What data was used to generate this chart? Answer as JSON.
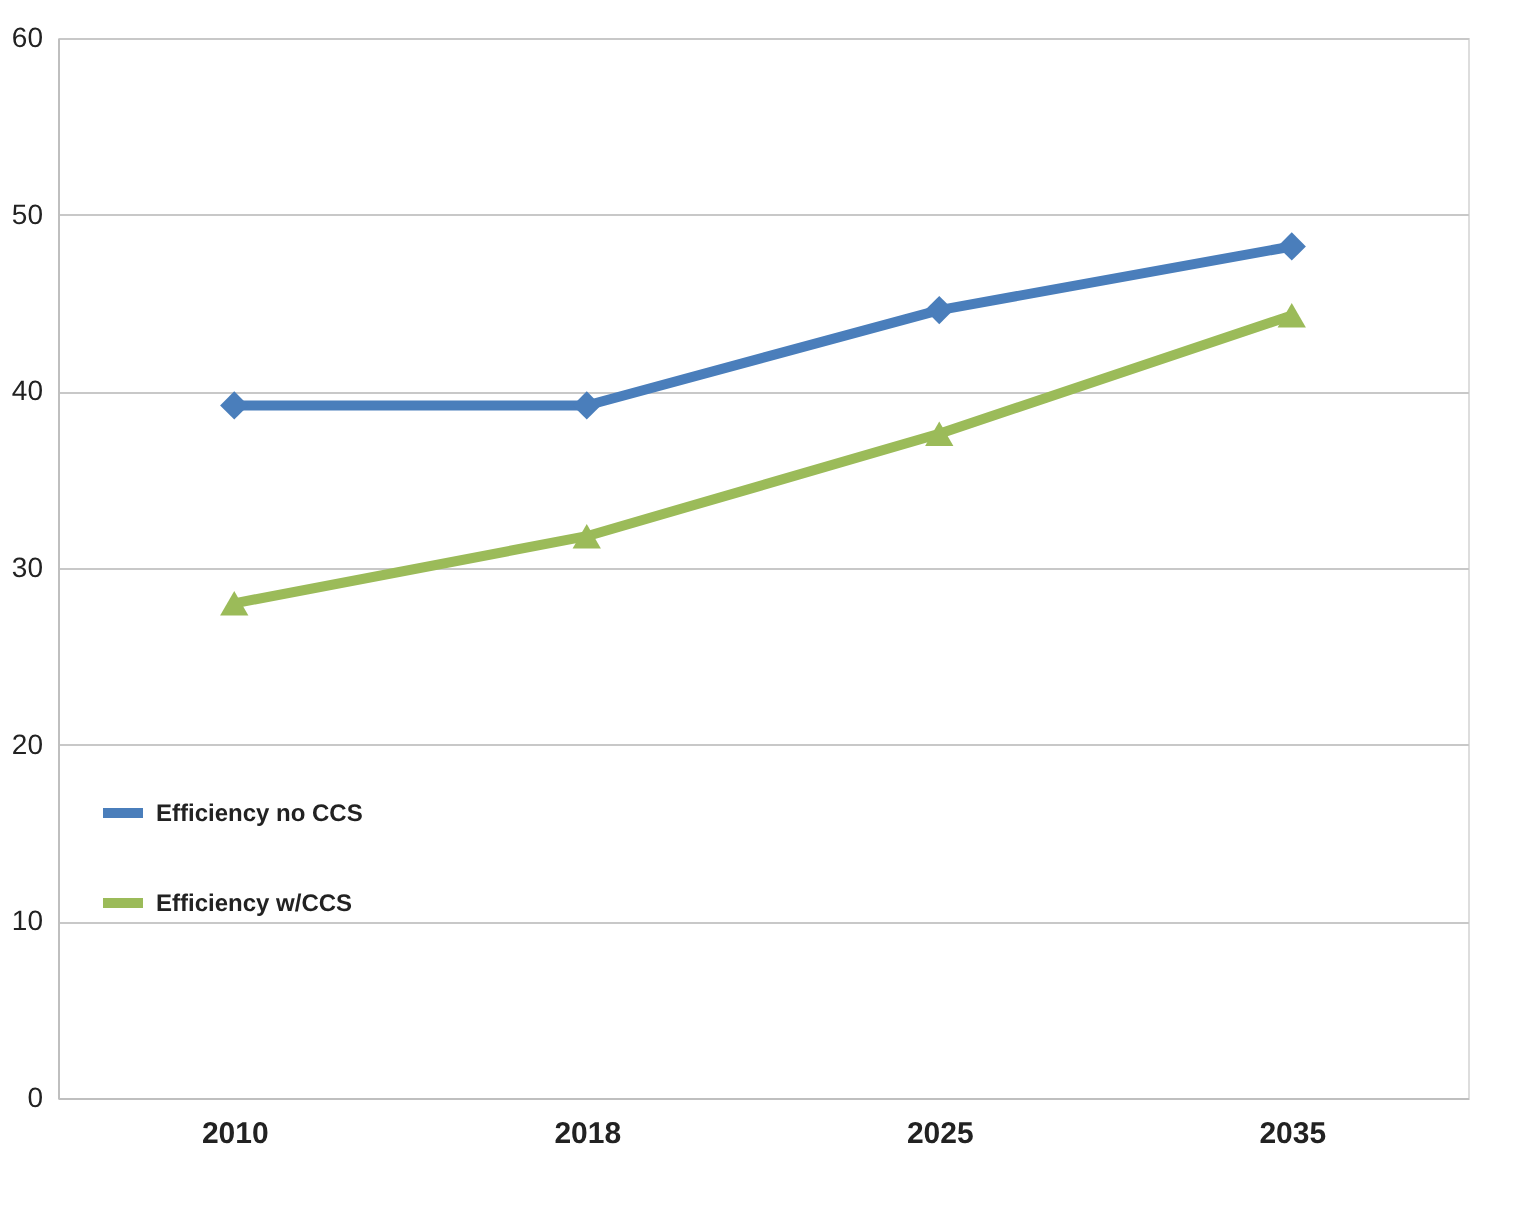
{
  "chart_data": {
    "type": "line",
    "categories": [
      "2010",
      "2018",
      "2025",
      "2035"
    ],
    "series": [
      {
        "name": "Efficiency no CCS",
        "color": "#4a7ebb",
        "marker": "diamond",
        "values": [
          39.2,
          39.2,
          44.6,
          48.2
        ]
      },
      {
        "name": "Efficiency w/CCS",
        "color": "#9bbb59",
        "marker": "triangle",
        "values": [
          28.0,
          31.8,
          37.6,
          44.3
        ]
      }
    ],
    "ylim": [
      0,
      60
    ],
    "yticks": [
      0,
      10,
      20,
      30,
      40,
      50,
      60
    ],
    "grid": "y",
    "legend": "left",
    "line_style": "solid"
  }
}
